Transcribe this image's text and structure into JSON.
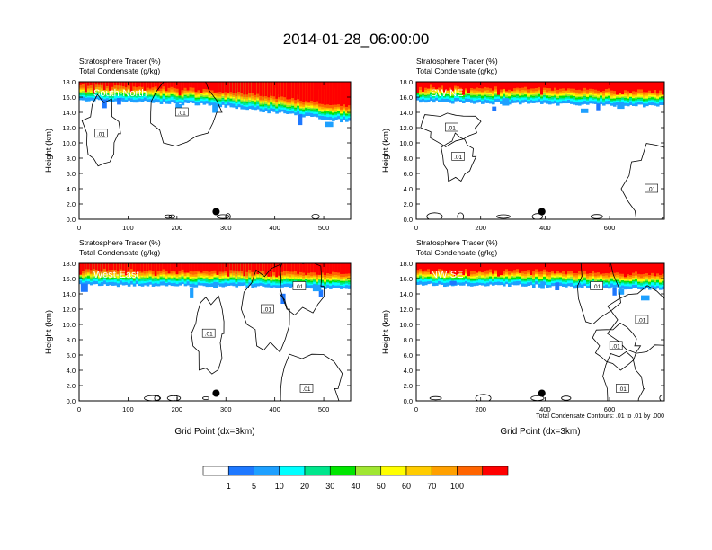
{
  "title": "2014-01-28_06:00:00",
  "colors": {
    "levels": [
      "#ffffff",
      "#1e78ff",
      "#1ea0ff",
      "#00ffff",
      "#00e68c",
      "#00e600",
      "#a0e632",
      "#ffff00",
      "#ffcc00",
      "#ffa000",
      "#ff6400",
      "#ff0000"
    ],
    "contour": "#000000"
  },
  "chart_data": [
    {
      "type": "heatmap",
      "panel_label": "South-North",
      "top_labels": [
        "Stratosphere Tracer   (%)",
        "Total Condensate   (g/kg)"
      ],
      "ylabel": "Height (km)",
      "xlabel": "",
      "xlim": [
        0,
        555
      ],
      "ylim": [
        0,
        18
      ],
      "xticks": [
        0,
        100,
        200,
        300,
        400,
        500
      ],
      "yticks": [
        "0.0",
        "2.0",
        "4.0",
        "6.0",
        "8.0",
        "10.0",
        "12.0",
        "14.0",
        "16.0",
        "18.0"
      ],
      "contour_labels": [
        {
          "text": ".01",
          "x": 210,
          "y": 14.0
        },
        {
          "text": ".01",
          "x": 45,
          "y": 11.2
        }
      ],
      "marker": {
        "x": 280,
        "y": 1.0
      },
      "tracer_base": [
        [
          0,
          16.0
        ],
        [
          200,
          15.6
        ],
        [
          300,
          15.2
        ],
        [
          400,
          14.4
        ],
        [
          500,
          13.6
        ],
        [
          555,
          13.2
        ]
      ]
    },
    {
      "type": "heatmap",
      "panel_label": "SW-NE",
      "top_labels": [
        "Stratosphere Tracer   (%)",
        "Total Condensate   (g/kg)"
      ],
      "ylabel": "Height (km)",
      "xlabel": "",
      "xlim": [
        0,
        770
      ],
      "ylim": [
        0,
        18
      ],
      "xticks": [
        0,
        200,
        400,
        600
      ],
      "yticks": [
        "0.0",
        "2.0",
        "4.0",
        "6.0",
        "8.0",
        "10.0",
        "12.0",
        "14.0",
        "16.0",
        "18.0"
      ],
      "contour_labels": [
        {
          "text": ".01",
          "x": 110,
          "y": 12.0
        },
        {
          "text": ".01",
          "x": 130,
          "y": 8.2
        },
        {
          "text": ".01",
          "x": 730,
          "y": 4.0
        }
      ],
      "marker": {
        "x": 390,
        "y": 1.0
      },
      "tracer_base": [
        [
          0,
          15.8
        ],
        [
          300,
          15.6
        ],
        [
          500,
          15.4
        ],
        [
          770,
          15.2
        ]
      ]
    },
    {
      "type": "heatmap",
      "panel_label": "West-East",
      "top_labels": [
        "Stratosphere Tracer   (%)",
        "Total Condensate   (g/kg)"
      ],
      "ylabel": "Height (km)",
      "xlabel": "Grid Point (dx=3km)",
      "xlim": [
        0,
        555
      ],
      "ylim": [
        0,
        18
      ],
      "xticks": [
        0,
        100,
        200,
        300,
        400,
        500
      ],
      "yticks": [
        "0.0",
        "2.0",
        "4.0",
        "6.0",
        "8.0",
        "10.0",
        "12.0",
        "14.0",
        "16.0",
        "18.0"
      ],
      "contour_labels": [
        {
          "text": ".01",
          "x": 450,
          "y": 15.0
        },
        {
          "text": ".01",
          "x": 385,
          "y": 12.0
        },
        {
          "text": ".01",
          "x": 265,
          "y": 8.8
        },
        {
          "text": ".01",
          "x": 465,
          "y": 1.6
        }
      ],
      "marker": {
        "x": 280,
        "y": 1.0
      },
      "tracer_base": [
        [
          0,
          15.6
        ],
        [
          300,
          15.4
        ],
        [
          555,
          15.0
        ]
      ]
    },
    {
      "type": "heatmap",
      "panel_label": "NW-SE",
      "top_labels": [
        "Stratosphere Tracer   (%)",
        "Total Condensate   (g/kg)"
      ],
      "ylabel": "Height (km)",
      "xlabel": "Grid Point (dx=3km)",
      "xlim": [
        0,
        770
      ],
      "ylim": [
        0,
        18
      ],
      "xticks": [
        0,
        200,
        400,
        600
      ],
      "yticks": [
        "0.0",
        "2.0",
        "4.0",
        "6.0",
        "8.0",
        "10.0",
        "12.0",
        "14.0",
        "16.0",
        "18.0"
      ],
      "contour_labels": [
        {
          "text": ".01",
          "x": 560,
          "y": 15.0
        },
        {
          "text": ".01",
          "x": 700,
          "y": 10.6
        },
        {
          "text": ".01",
          "x": 620,
          "y": 7.2
        },
        {
          "text": ".01",
          "x": 640,
          "y": 1.6
        }
      ],
      "marker": {
        "x": 390,
        "y": 1.0
      },
      "tracer_base": [
        [
          0,
          15.6
        ],
        [
          400,
          15.4
        ],
        [
          770,
          15.0
        ]
      ]
    }
  ],
  "contour_info": "Total Condensate Contours: .01 to .01 by .000",
  "colorbar": {
    "labels": [
      "1",
      "5",
      "10",
      "20",
      "30",
      "40",
      "50",
      "60",
      "70",
      "100"
    ]
  }
}
